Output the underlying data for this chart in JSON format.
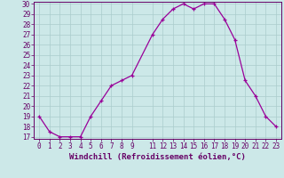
{
  "x": [
    0,
    1,
    2,
    3,
    4,
    5,
    6,
    7,
    8,
    9,
    11,
    12,
    13,
    14,
    15,
    16,
    17,
    18,
    19,
    20,
    21,
    22,
    23
  ],
  "y": [
    19,
    17.5,
    17,
    17,
    17,
    19,
    20.5,
    22,
    22.5,
    23,
    27,
    28.5,
    29.5,
    30,
    29.5,
    30,
    30,
    28.5,
    26.5,
    22.5,
    21,
    19,
    18
  ],
  "line_color": "#990099",
  "marker": "+",
  "bg_color": "#cce8e8",
  "grid_color": "#aacccc",
  "axis_color": "#660066",
  "xlabel": "Windchill (Refroidissement éolien,°C)",
  "ylim": [
    17,
    30
  ],
  "xlim": [
    -0.5,
    23.5
  ],
  "yticks": [
    17,
    18,
    19,
    20,
    21,
    22,
    23,
    24,
    25,
    26,
    27,
    28,
    29,
    30
  ],
  "xticks": [
    0,
    1,
    2,
    3,
    4,
    5,
    6,
    7,
    8,
    9,
    11,
    12,
    13,
    14,
    15,
    16,
    17,
    18,
    19,
    20,
    21,
    22,
    23
  ],
  "label_fontsize": 6.5,
  "tick_fontsize": 5.5
}
